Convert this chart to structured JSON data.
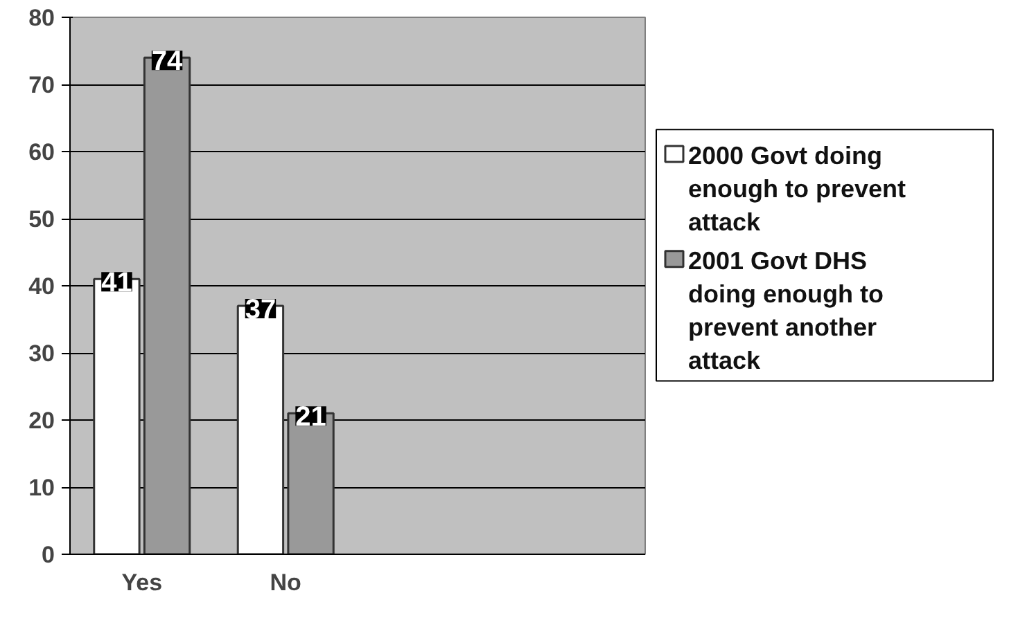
{
  "chart_data": {
    "type": "bar",
    "categories": [
      "Yes",
      "No"
    ],
    "series": [
      {
        "name": "2000 Govt doing enough to prevent attack",
        "color": "#ffffff",
        "values": [
          41,
          37
        ]
      },
      {
        "name": "2001 Govt DHS doing enough to prevent another attack",
        "color": "#999999",
        "values": [
          74,
          21
        ]
      }
    ],
    "ylim": [
      0,
      80
    ],
    "yticks": [
      0,
      10,
      20,
      30,
      40,
      50,
      60,
      70,
      80
    ],
    "grid": "y",
    "legend": "right",
    "data_labels": true
  }
}
